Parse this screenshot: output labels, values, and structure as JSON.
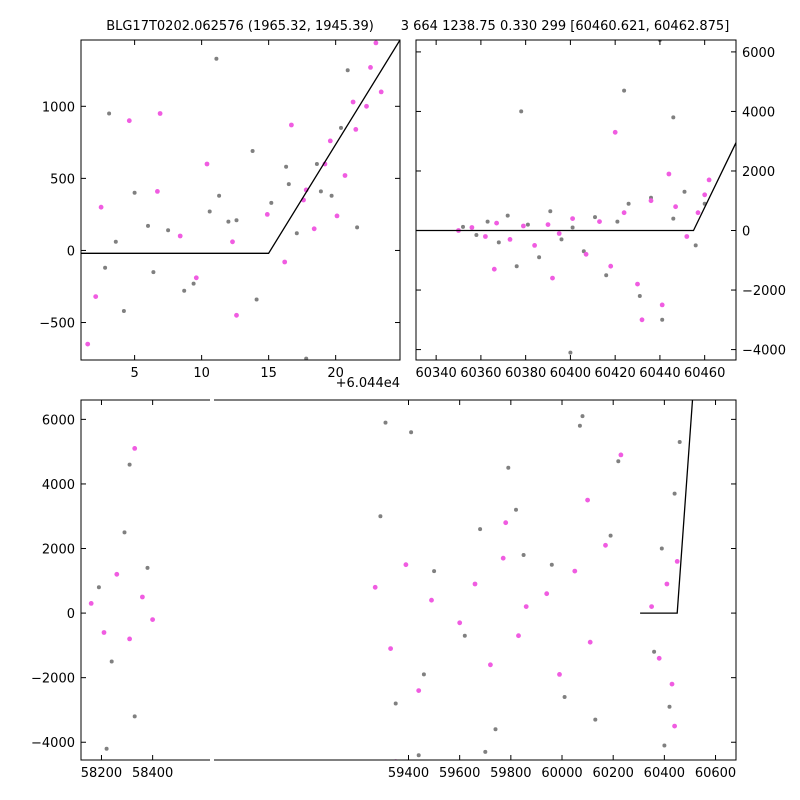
{
  "chart_data": [
    {
      "id": "tl",
      "type": "scatter",
      "title": "BLG17T0202.062576 (1965.32, 1945.39)",
      "xlim": [
        1,
        24.8
      ],
      "ylim": [
        -760,
        1460
      ],
      "xticks": [
        5,
        10,
        15,
        20
      ],
      "xtick_labels": [
        "5",
        "10",
        "15",
        "20"
      ],
      "yticks": [
        -500,
        0,
        500,
        1000
      ],
      "ytick_labels": [
        "−500",
        "0",
        "500",
        "1000"
      ],
      "x_offset_label": "+6.044e4",
      "model_line": {
        "x": [
          1,
          15,
          24.8
        ],
        "y": [
          -20,
          -20,
          1460
        ]
      },
      "series": [
        {
          "color": "#808080",
          "x": [
            2.8,
            3.6,
            5.0,
            6.4,
            7.5,
            9.4,
            10.6,
            11.3,
            12.6,
            13.8,
            15.2,
            16.5,
            17.1,
            17.8,
            18.6,
            19.7,
            20.4,
            21.6,
            3.1,
            4.2,
            6.0,
            8.7,
            11.1,
            12.0,
            14.1,
            16.3,
            18.9,
            20.9
          ],
          "y": [
            -120,
            60,
            400,
            -150,
            140,
            -230,
            270,
            380,
            210,
            690,
            330,
            460,
            120,
            -750,
            600,
            380,
            850,
            160,
            950,
            -420,
            170,
            -280,
            1330,
            200,
            -340,
            580,
            410,
            1250
          ]
        },
        {
          "color": "#f05ce1",
          "x": [
            1.5,
            2.5,
            4.6,
            6.9,
            8.4,
            10.4,
            12.6,
            14.9,
            16.7,
            17.8,
            18.4,
            19.2,
            20.1,
            20.7,
            21.5,
            22.3,
            23.0,
            23.4,
            2.1,
            6.7,
            9.6,
            12.3,
            16.2,
            17.6,
            19.6,
            21.3,
            22.6
          ],
          "y": [
            -650,
            300,
            900,
            950,
            100,
            600,
            -450,
            250,
            870,
            420,
            150,
            600,
            240,
            520,
            840,
            1000,
            1440,
            1100,
            -320,
            410,
            -190,
            60,
            -80,
            350,
            760,
            1030,
            1270
          ]
        }
      ]
    },
    {
      "id": "tr",
      "type": "scatter",
      "title": "3 664 1238.75 0.330 299 [60460.621, 60462.875]",
      "xlim": [
        60331,
        60474
      ],
      "ylim": [
        -4350,
        6400
      ],
      "xticks": [
        60340,
        60360,
        60380,
        60400,
        60420,
        60440,
        60460
      ],
      "xtick_labels": [
        "60340",
        "60360",
        "60380",
        "60400",
        "60420",
        "60440",
        "60460"
      ],
      "yticks": [
        -4000,
        -2000,
        0,
        2000,
        4000,
        6000
      ],
      "ytick_labels": [
        "−4000",
        "−2000",
        "0",
        "2000",
        "4000",
        "6000"
      ],
      "model_line": {
        "x": [
          60331,
          60455,
          60474
        ],
        "y": [
          0,
          0,
          2950
        ]
      },
      "series": [
        {
          "color": "#808080",
          "x": [
            60352,
            60358,
            60363,
            60368,
            60372,
            60376,
            60381,
            60386,
            60391,
            60396,
            60401,
            60406,
            60411,
            60416,
            60421,
            60426,
            60431,
            60436,
            60441,
            60446,
            60451,
            60456,
            60460,
            60378,
            60400,
            60424,
            60440,
            60446
          ],
          "y": [
            120,
            -150,
            300,
            -400,
            500,
            -1200,
            200,
            -900,
            650,
            -300,
            100,
            -700,
            450,
            -1500,
            300,
            900,
            -2200,
            1100,
            -3000,
            400,
            1300,
            -500,
            900,
            4000,
            -4100,
            4700,
            6400,
            3800
          ]
        },
        {
          "color": "#f05ce1",
          "x": [
            60350,
            60356,
            60362,
            60367,
            60373,
            60379,
            60384,
            60390,
            60395,
            60401,
            60407,
            60413,
            60418,
            60424,
            60430,
            60436,
            60441,
            60447,
            60452,
            60457,
            60460,
            60462,
            60366,
            60392,
            60420,
            60432,
            60444
          ],
          "y": [
            0,
            100,
            -200,
            250,
            -300,
            150,
            -500,
            200,
            -100,
            400,
            -800,
            300,
            -1200,
            600,
            -1800,
            1000,
            -2500,
            800,
            -200,
            600,
            1200,
            1700,
            -1300,
            -1600,
            3300,
            -3000,
            1900
          ]
        }
      ]
    },
    {
      "id": "bottom",
      "type": "scatter",
      "xlim": [
        58120,
        60680
      ],
      "ylim": [
        -4550,
        6600
      ],
      "xticks": [
        58200,
        58400,
        59400,
        59600,
        59800,
        60000,
        60200,
        60400,
        60600
      ],
      "xtick_labels": [
        "58200",
        "58400",
        "59400",
        "59600",
        "59800",
        "60000",
        "60200",
        "60400",
        "60600"
      ],
      "yticks": [
        -4000,
        -2000,
        0,
        2000,
        4000,
        6000
      ],
      "ytick_labels": [
        "−4000",
        "−2000",
        "0",
        "2000",
        "4000",
        "6000"
      ],
      "model_line": {
        "x": [
          60305,
          60450,
          60510
        ],
        "y": [
          0,
          0,
          6600
        ]
      },
      "series": [
        {
          "color": "#808080",
          "x": [
            58190,
            58240,
            58290,
            58330,
            58380,
            58220,
            58310,
            59290,
            59350,
            59410,
            59460,
            59500,
            59310,
            59440,
            59620,
            59680,
            59740,
            59790,
            59850,
            59700,
            59820,
            59960,
            60010,
            60070,
            60130,
            60190,
            60220,
            60080,
            60360,
            60390,
            60420,
            60440,
            60460,
            60400
          ],
          "y": [
            800,
            -1500,
            2500,
            -3200,
            1400,
            -4200,
            4600,
            3000,
            -2800,
            5600,
            -1900,
            1300,
            5900,
            -4400,
            -700,
            2600,
            -3600,
            4500,
            1800,
            -4300,
            3200,
            1500,
            -2600,
            5800,
            -3300,
            2400,
            4700,
            6100,
            -1200,
            2000,
            -2900,
            3700,
            5300,
            -4100
          ]
        },
        {
          "color": "#f05ce1",
          "x": [
            58160,
            58210,
            58260,
            58310,
            58360,
            58400,
            58330,
            59270,
            59330,
            59390,
            59440,
            59490,
            59350,
            59600,
            59660,
            59720,
            59770,
            59830,
            59860,
            59780,
            59940,
            59990,
            60050,
            60110,
            60170,
            60230,
            60100,
            60350,
            60380,
            60410,
            60430,
            60450,
            60440
          ],
          "y": [
            300,
            -600,
            1200,
            -800,
            500,
            -200,
            5100,
            800,
            -1100,
            1500,
            -2400,
            400,
            -4600,
            -300,
            900,
            -1600,
            1700,
            -700,
            200,
            2800,
            600,
            -1900,
            1300,
            -900,
            2100,
            4900,
            3500,
            200,
            -1400,
            900,
            -2200,
            1600,
            -3500
          ]
        }
      ]
    }
  ]
}
